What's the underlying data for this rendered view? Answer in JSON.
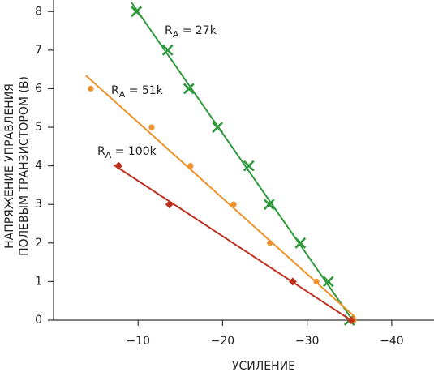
{
  "chart_data": {
    "type": "line",
    "x_label": "УСИЛЕНИЕ",
    "y_label": [
      "НАПРЯЖЕНИЕ УПРАВЛЕНИЯ",
      "ПОЛЕВЫМ ТРАНЗИСТОРОМ (В)"
    ],
    "xlim": [
      0,
      -45
    ],
    "xticks": [
      {
        "value": -10,
        "label": "−10"
      },
      {
        "value": -20,
        "label": "−20"
      },
      {
        "value": -30,
        "label": "−30"
      },
      {
        "value": -40,
        "label": "−40"
      }
    ],
    "ylim": [
      0,
      8.3
    ],
    "yticks": [
      0,
      1,
      2,
      3,
      4,
      5,
      6,
      7,
      8
    ],
    "series": [
      {
        "name": "RA = 27k",
        "color": "#2f9a3b",
        "marker": "x",
        "x": [
          -9.8,
          -13.5,
          -16.0,
          -19.4,
          -23.1,
          -25.5,
          -29.2,
          -32.5,
          -35.0
        ],
        "values": [
          8,
          7,
          6,
          5,
          4,
          3,
          2,
          1,
          0
        ]
      },
      {
        "name": "RA = 51k",
        "color": "#ef922c",
        "marker": "circle",
        "x": [
          -4.4,
          -11.6,
          -16.2,
          -21.3,
          -25.6,
          -31.1,
          -35.5
        ],
        "values": [
          6,
          5,
          4,
          3,
          2,
          1,
          0
        ]
      },
      {
        "name": "RA = 100k",
        "color": "#c0301f",
        "marker": "diamond",
        "x": [
          -7.7,
          -13.7,
          -28.3,
          -35.2
        ],
        "values": [
          4,
          3,
          1,
          0
        ]
      }
    ]
  }
}
